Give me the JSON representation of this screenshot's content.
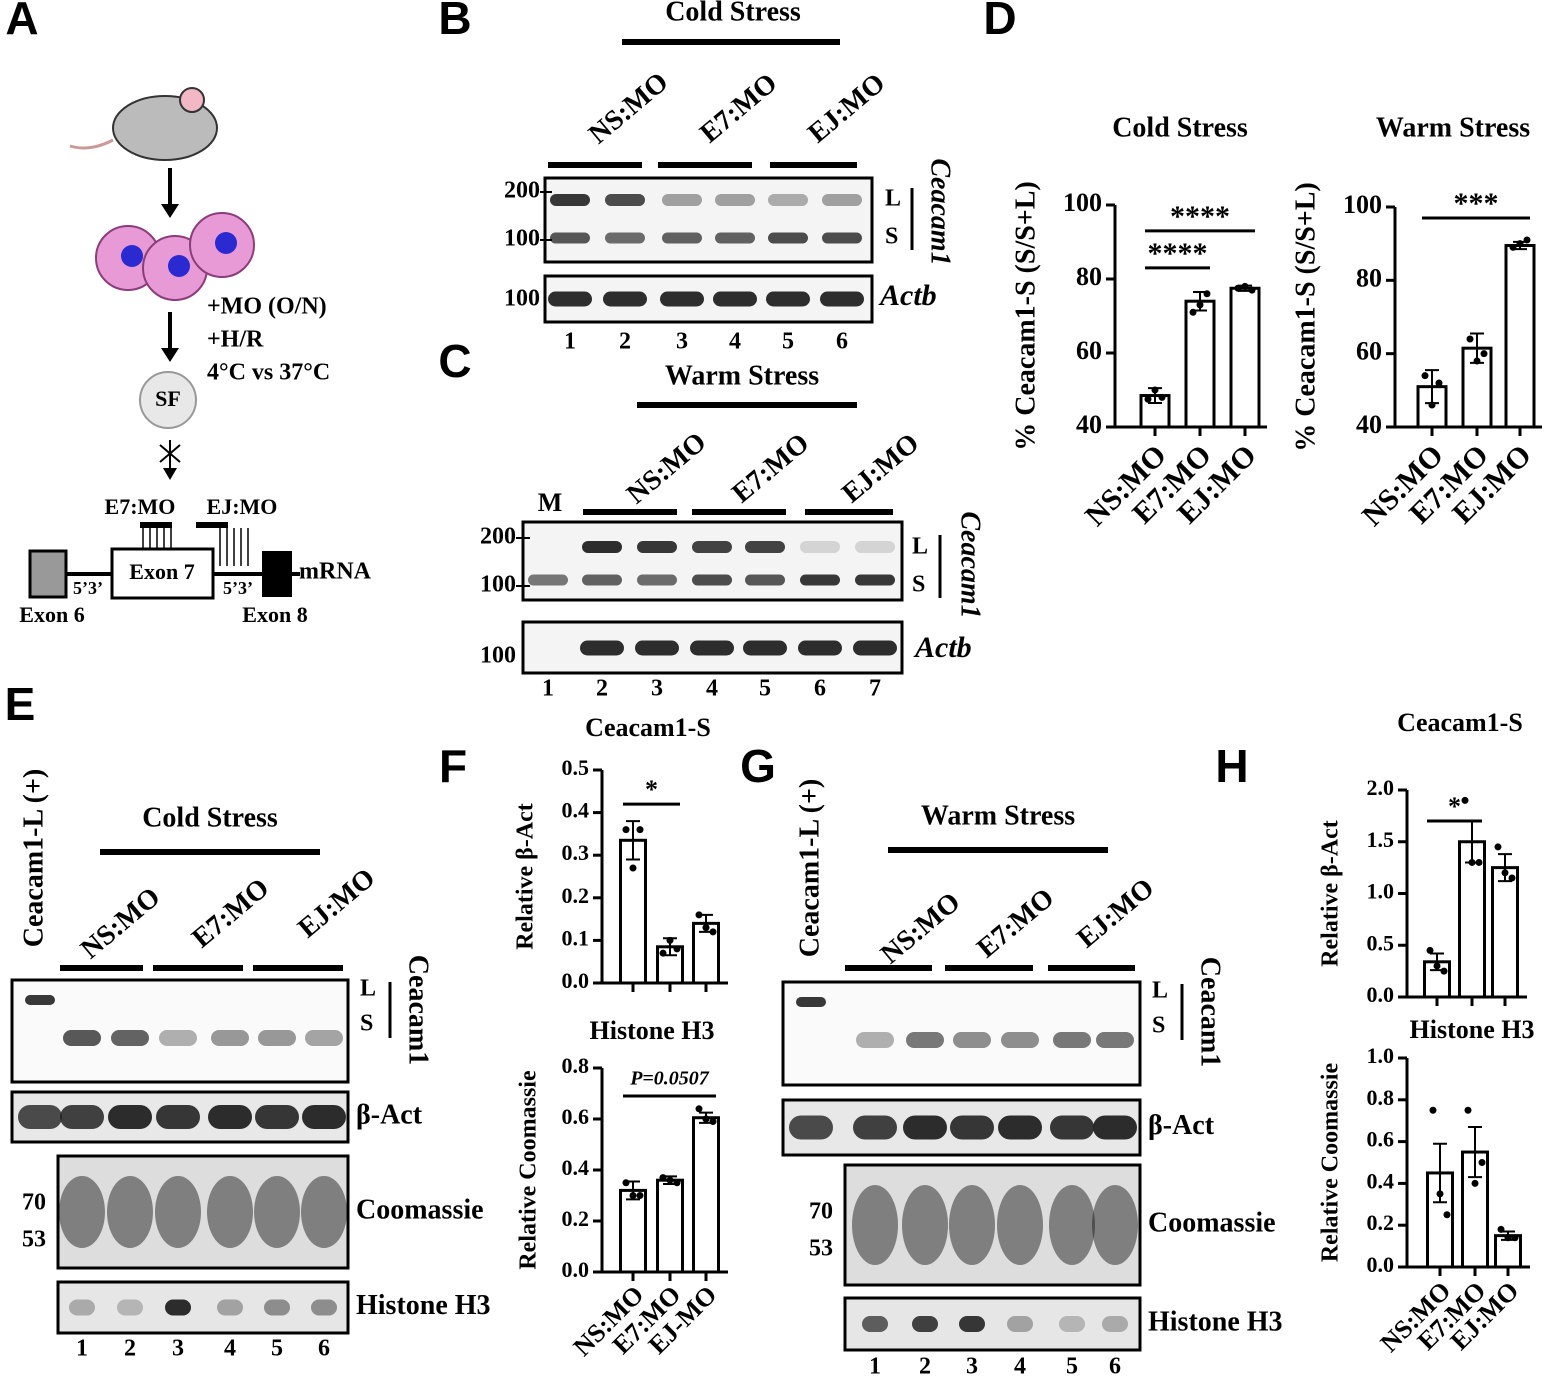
{
  "panel_labels": [
    "A",
    "B",
    "C",
    "D",
    "E",
    "F",
    "G",
    "H"
  ],
  "panel_a": {
    "steps": [
      "+MO (O/N)",
      "+H/R",
      "4°C vs 37°C"
    ],
    "sf": "SF",
    "morpholinos": [
      "E7:MO",
      "EJ:MO"
    ],
    "exons": [
      "Exon 6",
      "Exon 7",
      "Exon 8"
    ],
    "junctions": [
      "5’3’",
      "5’3’"
    ],
    "product": "mRNA"
  },
  "panel_b": {
    "title": "Cold Stress",
    "groups": [
      "NS:MO",
      "E7:MO",
      "EJ:MO"
    ],
    "markers": [
      200,
      100
    ],
    "bands": [
      "L",
      "S"
    ],
    "gene": "Ceacam1",
    "control": "Actb",
    "control_marker": 100,
    "lanes": [
      "1",
      "2",
      "3",
      "4",
      "5",
      "6"
    ]
  },
  "panel_c": {
    "title": "Warm Stress",
    "groups": [
      "NS:MO",
      "E7:MO",
      "EJ:MO"
    ],
    "marker_lane": "M",
    "markers": [
      200,
      100
    ],
    "bands": [
      "L",
      "S"
    ],
    "gene": "Ceacam1",
    "control": "Actb",
    "control_marker": 100,
    "lanes": [
      "1",
      "2",
      "3",
      "4",
      "5",
      "6",
      "7"
    ]
  },
  "panel_e": {
    "side_label": "Ceacam1-L (+)",
    "title": "Cold Stress",
    "groups": [
      "NS:MO",
      "E7:MO",
      "EJ:MO"
    ],
    "bands": [
      "L",
      "S"
    ],
    "gene": "Ceacam1",
    "rows": [
      "β-Act",
      "Coomassie",
      "Histone H3"
    ],
    "markers": [
      70,
      53
    ],
    "lanes": [
      "1",
      "2",
      "3",
      "4",
      "5",
      "6"
    ]
  },
  "panel_g": {
    "side_label": "Ceacam1-L (+)",
    "title": "Warm Stress",
    "groups": [
      "NS:MO",
      "E7:MO",
      "EJ:MO"
    ],
    "bands": [
      "L",
      "S"
    ],
    "gene": "Ceacam1",
    "rows": [
      "β-Act",
      "Coomassie",
      "Histone H3"
    ],
    "markers": [
      70,
      53
    ],
    "lanes": [
      "1",
      "2",
      "3",
      "4",
      "5",
      "6"
    ]
  },
  "chart_data": [
    {
      "type": "bar",
      "title": "Cold Stress",
      "y_label": "% Ceacam1-S (S/S+L)",
      "categories": [
        "NS:MO",
        "E7:MO",
        "EJ:MO"
      ],
      "values": [
        48.5,
        74,
        77.5
      ],
      "errors": [
        2,
        2.5,
        0.7
      ],
      "points": [
        [
          47.5,
          50,
          48
        ],
        [
          71,
          73,
          76
        ],
        [
          77.5,
          78,
          77
        ]
      ],
      "color": "#ffffff",
      "ylim": [
        40,
        100
      ],
      "yticks": [
        40,
        60,
        80,
        100
      ],
      "significance": [
        {
          "between": [
            "NS:MO",
            "E7:MO"
          ],
          "label": "****",
          "y": 83
        },
        {
          "between": [
            "NS:MO",
            "EJ:MO"
          ],
          "label": "****",
          "y": 93
        }
      ]
    },
    {
      "type": "bar",
      "title": "Warm Stress",
      "y_label": "% Ceacam1-S (S/S+L)",
      "categories": [
        "NS:MO",
        "E7:MO",
        "EJ:MO"
      ],
      "values": [
        51,
        61.5,
        89.5
      ],
      "errors": [
        4.5,
        4,
        1
      ],
      "points": [
        [
          54,
          46,
          52
        ],
        [
          64,
          58,
          60
        ],
        [
          89,
          90,
          91
        ]
      ],
      "color": "#ffffff",
      "ylim": [
        40,
        100
      ],
      "yticks": [
        40,
        60,
        80,
        100
      ],
      "significance": [
        {
          "between": [
            "NS:MO",
            "EJ:MO"
          ],
          "label": "***",
          "y": 97
        }
      ]
    },
    {
      "type": "bar",
      "title": "Ceacam1-S",
      "y_label": "Relative β-Act",
      "values": [
        0.335,
        0.085,
        0.14
      ],
      "errors": [
        0.045,
        0.02,
        0.02
      ],
      "points": [
        [
          0.36,
          0.27,
          0.36
        ],
        [
          0.07,
          0.1,
          0.08
        ],
        [
          0.16,
          0.13,
          0.12
        ]
      ],
      "color": "#ffffff",
      "ylim": [
        0,
        0.5
      ],
      "yticks": [
        {
          "value": 0,
          "label": "0.0"
        },
        0.1,
        0.2,
        0.3,
        0.4,
        0.5
      ],
      "significance": [
        {
          "between": [
            "NS:MO",
            "E7:MO"
          ],
          "label": "*",
          "y": 0.42
        }
      ]
    },
    {
      "type": "bar",
      "title": "Histone H3",
      "y_label": "Relative Coomassie",
      "categories": [
        "NS:MO",
        "E7:MO",
        "EJ-MO"
      ],
      "values": [
        0.32,
        0.36,
        0.605
      ],
      "errors": [
        0.035,
        0.015,
        0.02
      ],
      "points": [
        [
          0.35,
          0.3,
          0.3
        ],
        [
          0.37,
          0.36,
          0.35
        ],
        [
          0.64,
          0.6,
          0.59
        ]
      ],
      "color": "#ffffff",
      "ylim": [
        0,
        0.8
      ],
      "yticks": [
        {
          "value": 0,
          "label": "0.0"
        },
        0.2,
        0.4,
        0.6,
        0.8
      ],
      "significance": [
        {
          "between": [
            "NS:MO",
            "EJ-MO"
          ],
          "label": "P=0.0507",
          "y": 0.69
        }
      ]
    },
    {
      "type": "bar",
      "title": "Ceacam1-S",
      "y_label": "Relative β-Act",
      "values": [
        0.34,
        1.5,
        1.25
      ],
      "errors": [
        0.08,
        0.2,
        0.13
      ],
      "points": [
        [
          0.45,
          0.3,
          0.25
        ],
        [
          1.9,
          1.3,
          1.3
        ],
        [
          1.45,
          1.2,
          1.15
        ]
      ],
      "color": "#ffffff",
      "ylim": [
        0,
        2.0
      ],
      "yticks": [
        {
          "value": 0,
          "label": "0.0"
        },
        0.5,
        {
          "value": 1,
          "label": "1.0"
        },
        1.5,
        {
          "value": 2,
          "label": "2.0"
        }
      ],
      "significance": [
        {
          "between": [
            "NS:MO",
            "E7:MO"
          ],
          "label": "*",
          "y": 1.7
        }
      ]
    },
    {
      "type": "bar",
      "title": "Histone H3",
      "y_label": "Relative Coomassie",
      "categories": [
        "NS:MO",
        "E7:MO",
        "EJ:MO"
      ],
      "values": [
        0.45,
        0.55,
        0.15
      ],
      "errors": [
        0.14,
        0.12,
        0.02
      ],
      "points": [
        [
          0.75,
          0.35,
          0.25
        ],
        [
          0.75,
          0.4,
          0.5
        ],
        [
          0.18,
          0.14,
          0.14
        ]
      ],
      "color": "#ffffff",
      "ylim": [
        0,
        1.0
      ],
      "yticks": [
        {
          "value": 0,
          "label": "0.0"
        },
        0.2,
        0.4,
        0.6,
        0.8,
        {
          "value": 1,
          "label": "1.0"
        }
      ],
      "significance": []
    }
  ]
}
